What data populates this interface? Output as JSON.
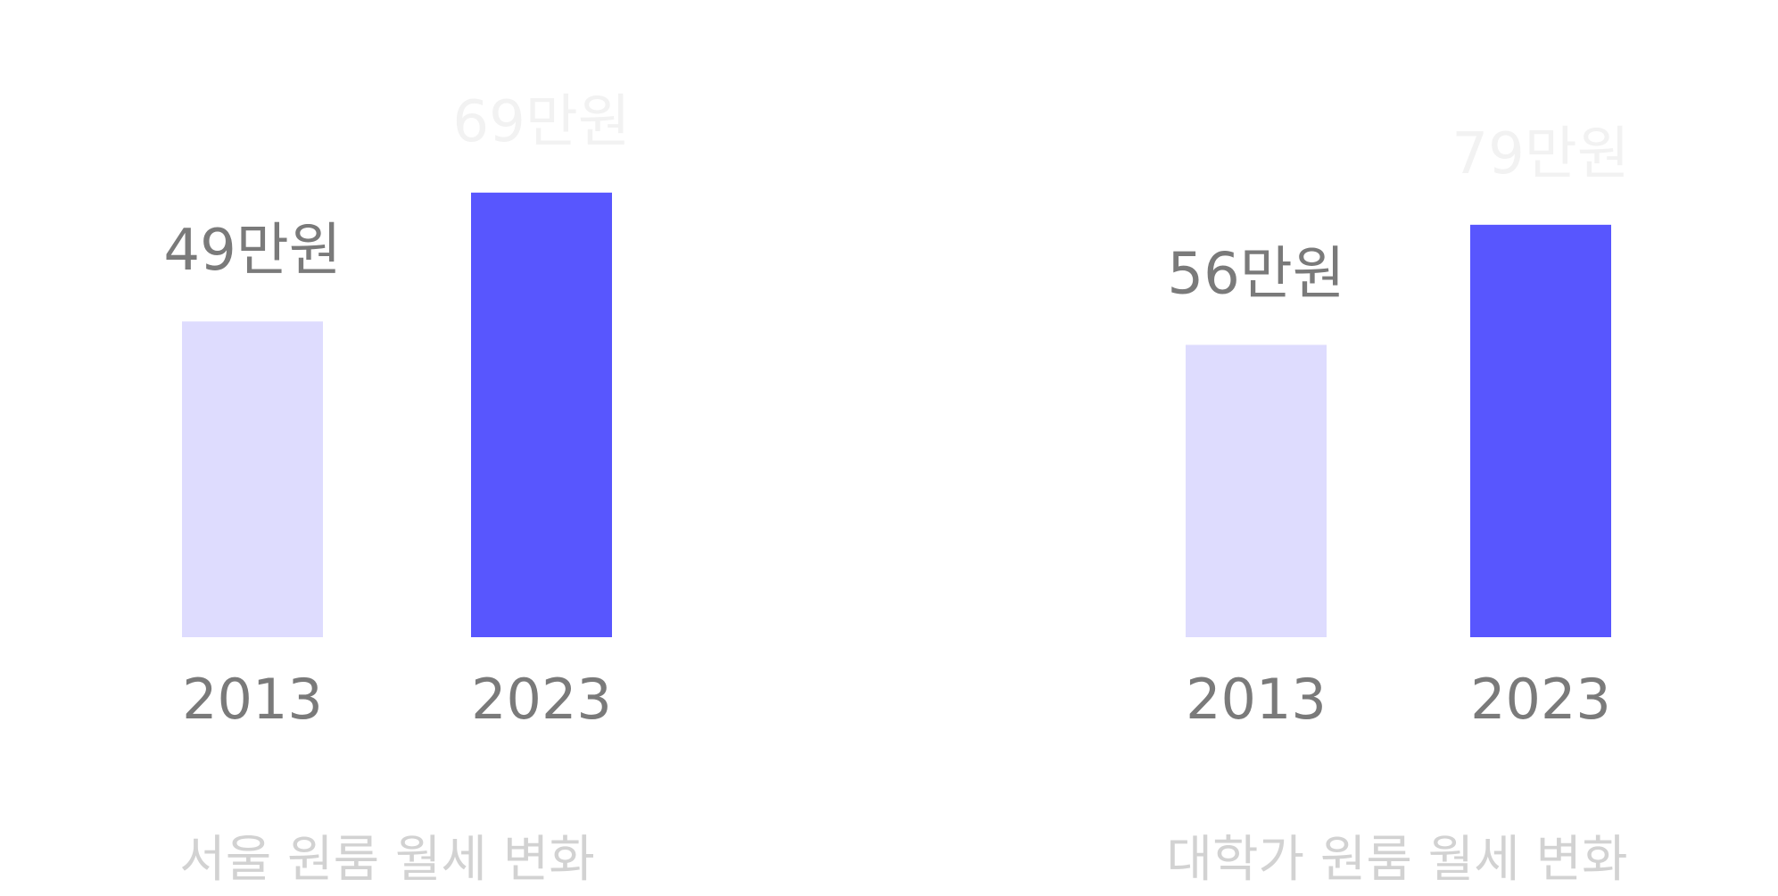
{
  "chart_data": [
    {
      "type": "bar",
      "title": "서울 원룸 월세 변화",
      "categories": [
        "2013",
        "2023"
      ],
      "values": [
        49,
        69
      ],
      "value_labels": [
        "49만원",
        "69만원"
      ],
      "colors": [
        "#dedcfe",
        "#5856fe"
      ],
      "label_colors": [
        "#7a7a7a",
        "#f2f2f2"
      ],
      "xlabel": "",
      "ylabel": "",
      "grid": false,
      "legend": "none"
    },
    {
      "type": "bar",
      "title": "대학가 원룸 월세 변화",
      "categories": [
        "2013",
        "2023"
      ],
      "values": [
        56,
        79
      ],
      "value_labels": [
        "56만원",
        "79만원"
      ],
      "colors": [
        "#dedcfe",
        "#5856fe"
      ],
      "label_colors": [
        "#7a7a7a",
        "#f2f2f2"
      ],
      "xlabel": "",
      "ylabel": "",
      "grid": false,
      "legend": "none"
    }
  ]
}
